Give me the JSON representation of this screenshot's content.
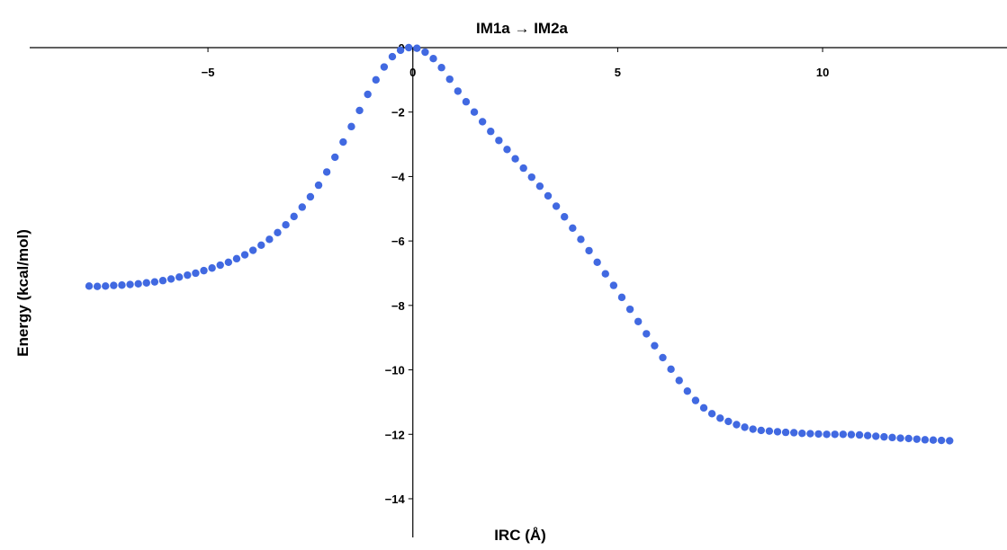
{
  "chart_data": {
    "type": "scatter",
    "title": "IM1a → IM2a",
    "xlabel": "IRC (Å)",
    "ylabel": "Energy (kcal/mol)",
    "xlim": [
      -9.35,
      14.5
    ],
    "ylim": [
      -15.2,
      0
    ],
    "xticks": [
      -5,
      0,
      5,
      10
    ],
    "yticks": [
      0,
      -2,
      -4,
      -6,
      -8,
      -10,
      -12,
      -14
    ],
    "xtick_labels": [
      "−5",
      "0",
      "5",
      "10"
    ],
    "ytick_labels": [
      "0",
      "−2",
      "−4",
      "−6",
      "−8",
      "−10",
      "−12",
      "−14"
    ],
    "grid": false,
    "marker_color": "#4169E1",
    "series": [
      {
        "points": [
          [
            -7.9,
            -7.4
          ],
          [
            -7.7,
            -7.41
          ],
          [
            -7.5,
            -7.4
          ],
          [
            -7.3,
            -7.38
          ],
          [
            -7.1,
            -7.37
          ],
          [
            -6.9,
            -7.35
          ],
          [
            -6.7,
            -7.33
          ],
          [
            -6.5,
            -7.3
          ],
          [
            -6.3,
            -7.27
          ],
          [
            -6.1,
            -7.23
          ],
          [
            -5.9,
            -7.18
          ],
          [
            -5.7,
            -7.12
          ],
          [
            -5.5,
            -7.06
          ],
          [
            -5.3,
            -7.0
          ],
          [
            -5.1,
            -6.92
          ],
          [
            -4.9,
            -6.84
          ],
          [
            -4.7,
            -6.75
          ],
          [
            -4.5,
            -6.66
          ],
          [
            -4.3,
            -6.55
          ],
          [
            -4.1,
            -6.43
          ],
          [
            -3.9,
            -6.29
          ],
          [
            -3.7,
            -6.13
          ],
          [
            -3.5,
            -5.95
          ],
          [
            -3.3,
            -5.74
          ],
          [
            -3.1,
            -5.5
          ],
          [
            -2.9,
            -5.24
          ],
          [
            -2.7,
            -4.95
          ],
          [
            -2.5,
            -4.63
          ],
          [
            -2.3,
            -4.27
          ],
          [
            -2.1,
            -3.86
          ],
          [
            -1.9,
            -3.4
          ],
          [
            -1.7,
            -2.93
          ],
          [
            -1.5,
            -2.45
          ],
          [
            -1.3,
            -1.95
          ],
          [
            -1.1,
            -1.45
          ],
          [
            -0.9,
            -1.0
          ],
          [
            -0.7,
            -0.6
          ],
          [
            -0.5,
            -0.28
          ],
          [
            -0.3,
            -0.08
          ],
          [
            -0.1,
            0.0
          ],
          [
            0.1,
            -0.02
          ],
          [
            0.3,
            -0.14
          ],
          [
            0.5,
            -0.34
          ],
          [
            0.7,
            -0.62
          ],
          [
            0.9,
            -0.98
          ],
          [
            1.1,
            -1.35
          ],
          [
            1.3,
            -1.68
          ],
          [
            1.5,
            -2.0
          ],
          [
            1.7,
            -2.3
          ],
          [
            1.9,
            -2.6
          ],
          [
            2.1,
            -2.88
          ],
          [
            2.3,
            -3.16
          ],
          [
            2.5,
            -3.45
          ],
          [
            2.7,
            -3.74
          ],
          [
            2.9,
            -4.02
          ],
          [
            3.1,
            -4.3
          ],
          [
            3.3,
            -4.6
          ],
          [
            3.5,
            -4.92
          ],
          [
            3.7,
            -5.25
          ],
          [
            3.9,
            -5.6
          ],
          [
            4.1,
            -5.95
          ],
          [
            4.3,
            -6.3
          ],
          [
            4.5,
            -6.66
          ],
          [
            4.7,
            -7.02
          ],
          [
            4.9,
            -7.38
          ],
          [
            5.1,
            -7.75
          ],
          [
            5.3,
            -8.12
          ],
          [
            5.5,
            -8.5
          ],
          [
            5.7,
            -8.88
          ],
          [
            5.9,
            -9.25
          ],
          [
            6.1,
            -9.62
          ],
          [
            6.3,
            -9.98
          ],
          [
            6.5,
            -10.33
          ],
          [
            6.7,
            -10.66
          ],
          [
            6.9,
            -10.95
          ],
          [
            7.1,
            -11.18
          ],
          [
            7.3,
            -11.36
          ],
          [
            7.5,
            -11.5
          ],
          [
            7.7,
            -11.6
          ],
          [
            7.9,
            -11.7
          ],
          [
            8.1,
            -11.78
          ],
          [
            8.3,
            -11.84
          ],
          [
            8.5,
            -11.88
          ],
          [
            8.7,
            -11.9
          ],
          [
            8.9,
            -11.92
          ],
          [
            9.1,
            -11.94
          ],
          [
            9.3,
            -11.95
          ],
          [
            9.5,
            -11.97
          ],
          [
            9.7,
            -11.98
          ],
          [
            9.9,
            -11.99
          ],
          [
            10.1,
            -12.0
          ],
          [
            10.3,
            -12.0
          ],
          [
            10.5,
            -12.0
          ],
          [
            10.7,
            -12.01
          ],
          [
            10.9,
            -12.02
          ],
          [
            11.1,
            -12.04
          ],
          [
            11.3,
            -12.06
          ],
          [
            11.5,
            -12.08
          ],
          [
            11.7,
            -12.1
          ],
          [
            11.9,
            -12.12
          ],
          [
            12.1,
            -12.13
          ],
          [
            12.3,
            -12.15
          ],
          [
            12.5,
            -12.17
          ],
          [
            12.7,
            -12.18
          ],
          [
            12.9,
            -12.19
          ],
          [
            13.1,
            -12.2
          ]
        ]
      }
    ]
  }
}
